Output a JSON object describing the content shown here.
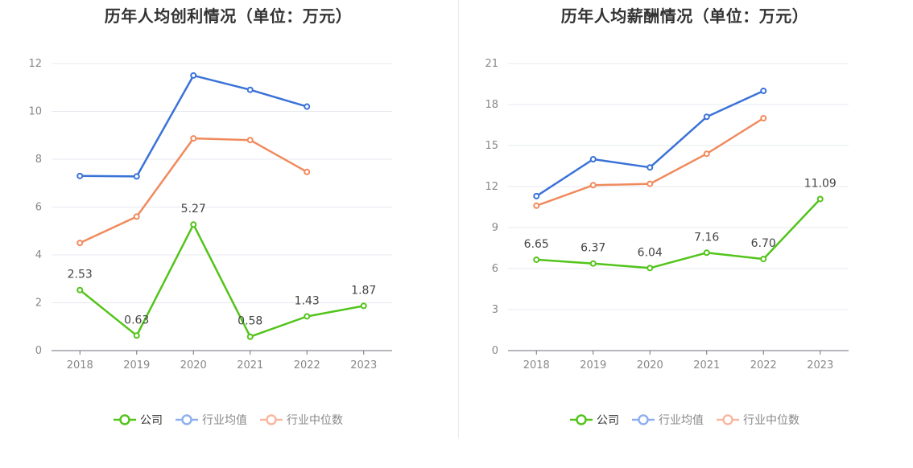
{
  "colors": {
    "company": "#52c41a",
    "industry_avg": "#3a72d8",
    "industry_median": "#f08a5d",
    "legend_avg": "#8fb0ee",
    "legend_median": "#f7b8a2",
    "grid": "#e6e8ef",
    "axis": "#888888"
  },
  "legend": {
    "company": "公司",
    "industry_avg": "行业均值",
    "industry_median": "行业中位数"
  },
  "chart_data": [
    {
      "type": "line",
      "title": "历年人均创利情况（单位：万元）",
      "categories": [
        "2018",
        "2019",
        "2020",
        "2021",
        "2022",
        "2023"
      ],
      "ylim": [
        0,
        12
      ],
      "yticks": [
        0,
        2,
        4,
        6,
        8,
        10,
        12
      ],
      "series": [
        {
          "key": "company",
          "name": "公司",
          "values": [
            2.53,
            0.63,
            5.27,
            0.58,
            1.43,
            1.87
          ],
          "labels": [
            "2.53",
            "0.63",
            "5.27",
            "0.58",
            "1.43",
            "1.87"
          ]
        },
        {
          "key": "industry_avg",
          "name": "行业均值",
          "values": [
            7.3,
            7.28,
            11.5,
            10.9,
            10.2,
            null
          ]
        },
        {
          "key": "industry_median",
          "name": "行业中位数",
          "values": [
            4.5,
            5.6,
            8.87,
            8.8,
            7.47,
            null
          ]
        }
      ]
    },
    {
      "type": "line",
      "title": "历年人均薪酬情况（单位：万元）",
      "categories": [
        "2018",
        "2019",
        "2020",
        "2021",
        "2022",
        "2023"
      ],
      "ylim": [
        0,
        21
      ],
      "yticks": [
        0,
        3,
        6,
        9,
        12,
        15,
        18,
        21
      ],
      "series": [
        {
          "key": "company",
          "name": "公司",
          "values": [
            6.65,
            6.37,
            6.04,
            7.16,
            6.7,
            11.09
          ],
          "labels": [
            "6.65",
            "6.37",
            "6.04",
            "7.16",
            "6.70",
            "11.09"
          ]
        },
        {
          "key": "industry_avg",
          "name": "行业均值",
          "values": [
            11.3,
            14.0,
            13.4,
            17.1,
            19.0,
            null
          ]
        },
        {
          "key": "industry_median",
          "name": "行业中位数",
          "values": [
            10.6,
            12.1,
            12.2,
            14.4,
            17.0,
            null
          ]
        }
      ]
    }
  ]
}
